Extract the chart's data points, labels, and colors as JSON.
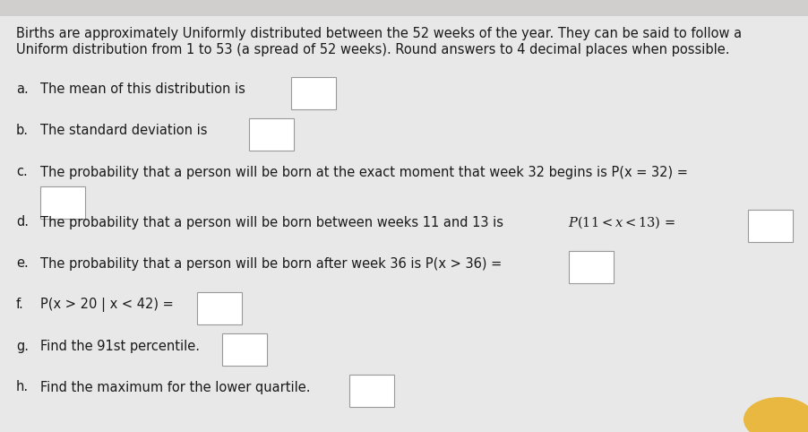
{
  "bg_color": "#e8e8e8",
  "content_bg": "#f2f1f0",
  "text_color": "#1a1a1a",
  "intro_line1": "Births are approximately Uniformly distributed between the 52 weeks of the year. They can be said to follow a",
  "intro_line2": "Uniform distribution from 1 to 53 (a spread of 52 weeks). Round answers to 4 decimal places when possible.",
  "box_color": "#ffffff",
  "box_edge_color": "#999999",
  "font_size": 10.5,
  "items": [
    {
      "label": "a.",
      "text": "The mean of this distribution is",
      "box_after": true,
      "newline_box": false
    },
    {
      "label": "b.",
      "text": "The standard deviation is",
      "box_after": true,
      "newline_box": false
    },
    {
      "label": "c.",
      "text": "The probability that a person will be born at the exact moment that week 32 begins is P(x = 32) =",
      "box_after": true,
      "newline_box": true
    },
    {
      "label": "d.",
      "text": "The probability that a person will be born between weeks 11 and 13 is",
      "math_part": "P(11 < x < 13) =",
      "box_after": true,
      "newline_box": false
    },
    {
      "label": "e.",
      "text": "The probability that a person will be born after week 36 is P(x > 36) =",
      "box_after": true,
      "newline_box": false
    },
    {
      "label": "f.",
      "text": "P(x > 20 | x < 42) =",
      "box_after": true,
      "newline_box": false
    },
    {
      "label": "g.",
      "text": "Find the 91st percentile.",
      "box_after": true,
      "newline_box": false
    },
    {
      "label": "h.",
      "text": "Find the maximum for the lower quartile.",
      "box_after": true,
      "newline_box": false
    }
  ]
}
